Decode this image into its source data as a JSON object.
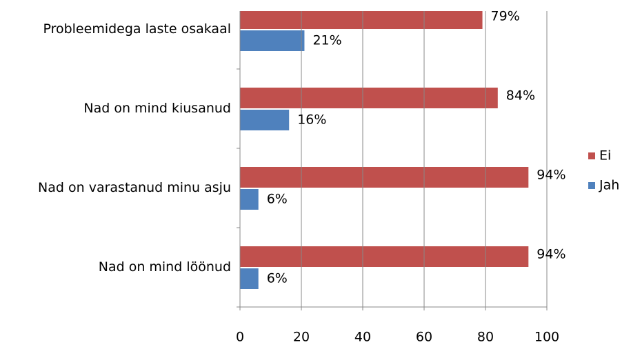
{
  "chart_data": {
    "type": "hbar",
    "categories": [
      "Probleemidega laste osakaal",
      "Nad on mind kiusanud",
      "Nad on varastanud minu asju",
      "Nad on mind löönud"
    ],
    "series": [
      {
        "name": "Ei",
        "color": "#c0504d",
        "values": [
          79,
          84,
          94,
          94
        ],
        "value_labels": [
          "79%",
          "84%",
          "94%",
          "94%"
        ]
      },
      {
        "name": "Jah",
        "color": "#4f81bd",
        "values": [
          21,
          16,
          6,
          6
        ],
        "value_labels": [
          "21%",
          "16%",
          "6%",
          "6%"
        ]
      }
    ],
    "xlim": [
      0,
      100
    ],
    "xticks": [
      0,
      20,
      40,
      60,
      80,
      100
    ],
    "grid": true,
    "legend": "right"
  }
}
